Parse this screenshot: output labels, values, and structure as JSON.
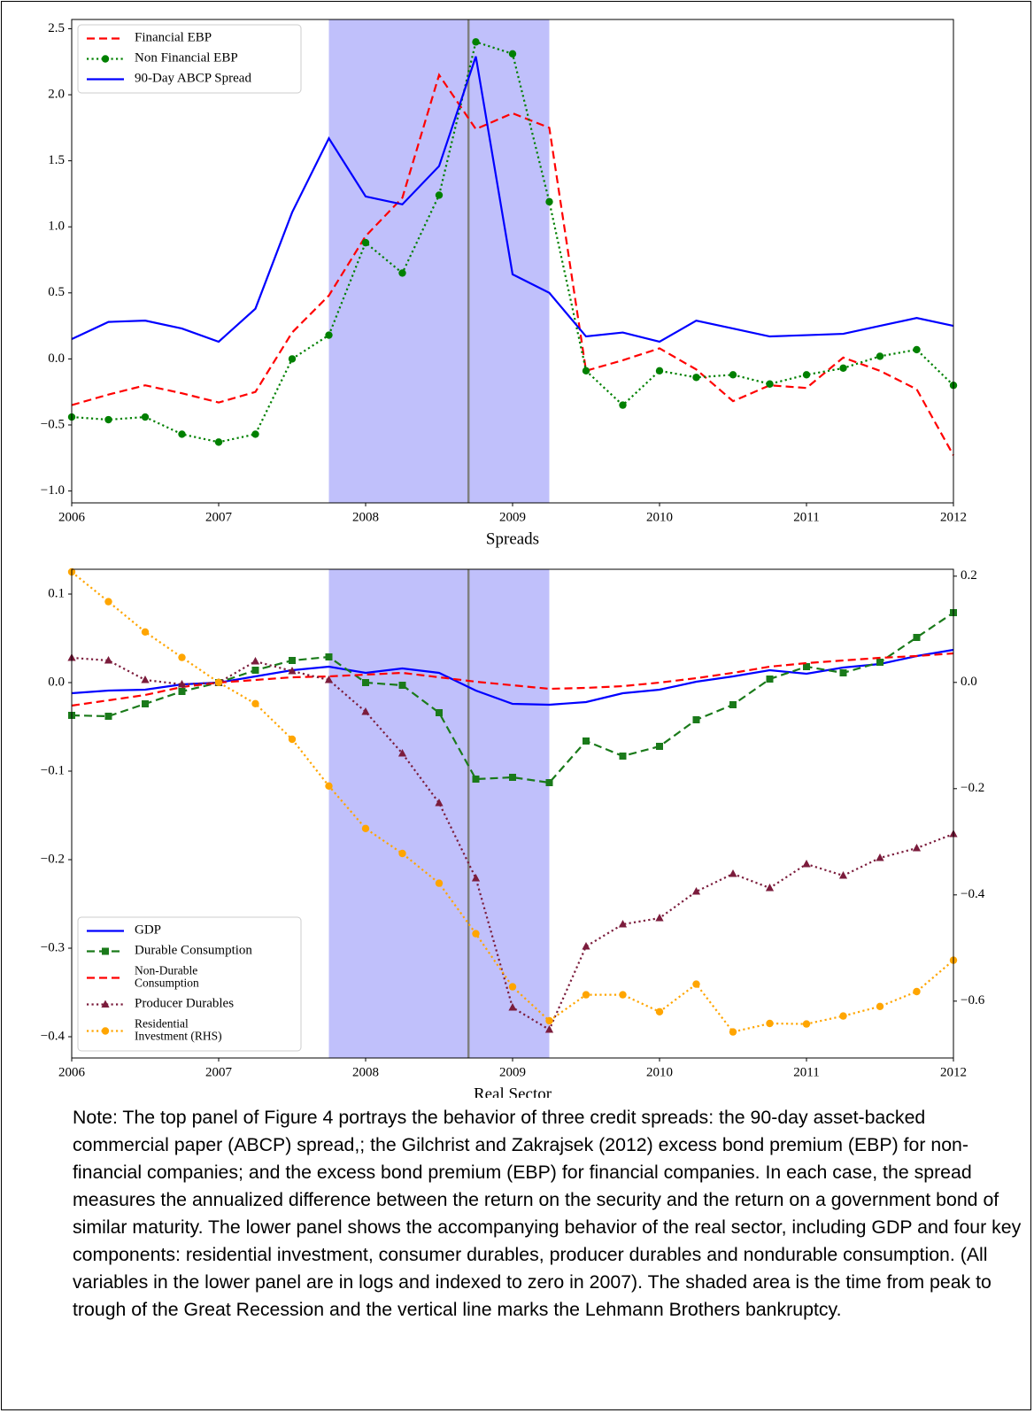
{
  "chart_data": [
    {
      "type": "line",
      "xlabel": "Spreads",
      "legend": "upper left",
      "xlim": [
        2006,
        2012
      ],
      "xticks": [
        2006,
        2007,
        2008,
        2009,
        2010,
        2011,
        2012
      ],
      "ylim": [
        -1.09,
        2.57
      ],
      "yticks": [
        {
          "value": -1.0,
          "label": "−1.0"
        },
        {
          "value": -0.5,
          "label": "−0.5"
        },
        {
          "value": 0,
          "label": "0.0"
        },
        0.5,
        {
          "value": 1.0,
          "label": "1.0"
        },
        1.5,
        {
          "value": 2.0,
          "label": "2.0"
        },
        2.5
      ],
      "shade": [
        2007.75,
        2009.25
      ],
      "shade_color": "#c0c0fb",
      "vline": 2008.7,
      "x": [
        2006,
        2006.25,
        2006.5,
        2006.75,
        2007,
        2007.25,
        2007.5,
        2007.75,
        2008,
        2008.25,
        2008.5,
        2008.75,
        2009,
        2009.25,
        2009.5,
        2009.75,
        2010,
        2010.25,
        2010.5,
        2010.75,
        2011,
        2011.25,
        2011.5,
        2011.75,
        2012
      ],
      "series": [
        {
          "name": "Financial EBP",
          "color": "#ff0000",
          "style": "dashed",
          "marker": "none",
          "values": [
            -0.35,
            -0.27,
            -0.2,
            -0.26,
            -0.33,
            -0.25,
            0.2,
            0.48,
            0.93,
            1.22,
            2.15,
            1.74,
            1.86,
            1.75,
            -0.09,
            -0.01,
            0.08,
            -0.08,
            -0.32,
            -0.2,
            -0.22,
            0.01,
            -0.09,
            -0.23,
            -0.73
          ]
        },
        {
          "name": "Non Financial EBP",
          "color": "#008000",
          "style": "dotted",
          "marker": "circle",
          "values": [
            -0.44,
            -0.46,
            -0.44,
            -0.57,
            -0.63,
            -0.57,
            0.0,
            0.18,
            0.88,
            0.65,
            1.24,
            2.4,
            2.31,
            1.19,
            -0.09,
            -0.35,
            -0.09,
            -0.14,
            -0.12,
            -0.19,
            -0.12,
            -0.07,
            0.02,
            0.07,
            -0.2
          ]
        },
        {
          "name": "90-Day ABCP Spread",
          "color": "#0000ff",
          "style": "solid",
          "marker": "none",
          "values": [
            0.15,
            0.28,
            0.29,
            0.23,
            0.13,
            0.38,
            1.11,
            1.67,
            1.23,
            1.17,
            1.46,
            2.29,
            0.64,
            0.5,
            0.17,
            0.2,
            0.13,
            0.29,
            0.23,
            0.17,
            0.18,
            0.19,
            0.25,
            0.31,
            0.25
          ]
        }
      ]
    },
    {
      "type": "line",
      "xlabel": "Real Sector",
      "legend": "lower left",
      "xlim": [
        2006,
        2012
      ],
      "xticks": [
        2006,
        2007,
        2008,
        2009,
        2010,
        2011,
        2012
      ],
      "ylim": [
        -0.424,
        0.128
      ],
      "yticks": [
        {
          "value": -0.4,
          "label": "−0.4"
        },
        {
          "value": -0.3,
          "label": "−0.3"
        },
        {
          "value": -0.2,
          "label": "−0.2"
        },
        {
          "value": -0.1,
          "label": "−0.1"
        },
        {
          "value": 0,
          "label": "0.0"
        },
        0.1
      ],
      "y2lim": [
        -0.707,
        0.213
      ],
      "y2ticks": [
        {
          "value": -0.6,
          "label": "−0.6"
        },
        {
          "value": -0.4,
          "label": "−0.4"
        },
        {
          "value": -0.2,
          "label": "−0.2"
        },
        {
          "value": 0,
          "label": "0.0"
        },
        0.2
      ],
      "shade": [
        2007.75,
        2009.25
      ],
      "shade_color": "#c0c0fb",
      "vline": 2008.7,
      "x": [
        2006,
        2006.25,
        2006.5,
        2006.75,
        2007,
        2007.25,
        2007.5,
        2007.75,
        2008,
        2008.25,
        2008.5,
        2008.75,
        2009,
        2009.25,
        2009.5,
        2009.75,
        2010,
        2010.25,
        2010.5,
        2010.75,
        2011,
        2011.25,
        2011.5,
        2011.75,
        2012
      ],
      "series": [
        {
          "name": "GDP",
          "color": "#0000ff",
          "style": "solid",
          "marker": "none",
          "values": [
            -0.012,
            -0.009,
            -0.008,
            -0.002,
            0.0,
            0.007,
            0.014,
            0.018,
            0.011,
            0.016,
            0.011,
            -0.009,
            -0.024,
            -0.025,
            -0.022,
            -0.012,
            -0.008,
            0.001,
            0.007,
            0.014,
            0.01,
            0.017,
            0.021,
            0.03,
            0.037
          ]
        },
        {
          "name": "Durable Consumption",
          "color": "#1a7a1a",
          "style": "dashed",
          "marker": "square",
          "values": [
            -0.037,
            -0.038,
            -0.024,
            -0.01,
            0.0,
            0.014,
            0.025,
            0.029,
            0.0,
            -0.003,
            -0.034,
            -0.109,
            -0.107,
            -0.113,
            -0.066,
            -0.083,
            -0.072,
            -0.042,
            -0.025,
            0.004,
            0.018,
            0.011,
            0.023,
            0.051,
            0.079
          ]
        },
        {
          "name": "Non-Durable\nConsumption",
          "color": "#ff0000",
          "style": "dashed",
          "marker": "none",
          "values": [
            -0.026,
            -0.02,
            -0.014,
            -0.005,
            0.0,
            0.003,
            0.006,
            0.007,
            0.009,
            0.011,
            0.006,
            0.001,
            -0.003,
            -0.007,
            -0.006,
            -0.004,
            0.0,
            0.005,
            0.011,
            0.018,
            0.022,
            0.025,
            0.028,
            0.03,
            0.033
          ]
        },
        {
          "name": "Producer Durables",
          "color": "#7b1c3c",
          "style": "dotted",
          "marker": "triangle",
          "values": [
            0.028,
            0.025,
            0.003,
            -0.002,
            0.0,
            0.024,
            0.013,
            0.003,
            -0.033,
            -0.08,
            -0.136,
            -0.221,
            -0.367,
            -0.392,
            -0.298,
            -0.273,
            -0.266,
            -0.236,
            -0.216,
            -0.232,
            -0.205,
            -0.218,
            -0.198,
            -0.187,
            -0.171
          ]
        },
        {
          "name": "Residential\nInvestment (RHS)",
          "color": "#ffa500",
          "style": "dotted",
          "marker": "circle",
          "axis": "y2",
          "values": [
            0.208,
            0.152,
            0.095,
            0.047,
            0.0,
            -0.04,
            -0.107,
            -0.195,
            -0.275,
            -0.322,
            -0.378,
            -0.473,
            -0.573,
            -0.637,
            -0.588,
            -0.588,
            -0.62,
            -0.568,
            -0.658,
            -0.642,
            -0.643,
            -0.628,
            -0.61,
            -0.582,
            -0.523
          ]
        }
      ]
    }
  ],
  "note": "Note: The top panel of Figure 4 portrays the behavior of three credit spreads: the 90-day asset-backed commercial paper (ABCP) spread,; the Gilchrist and Zakrajsek (2012) excess bond premium (EBP) for non-financial companies; and the excess bond premium (EBP) for financial companies. In each case, the spread measures the annualized difference between the return on the security and the return on a government bond of similar maturity. The lower panel shows the accompanying behavior of the real sector, including GDP and four key components: residential investment, consumer durables, producer durables and nondurable consumption. (All variables in the lower panel are in logs and indexed to zero in 2007).  The shaded area is the time from peak to trough of the Great Recession and the vertical line marks the Lehmann Brothers bankruptcy."
}
